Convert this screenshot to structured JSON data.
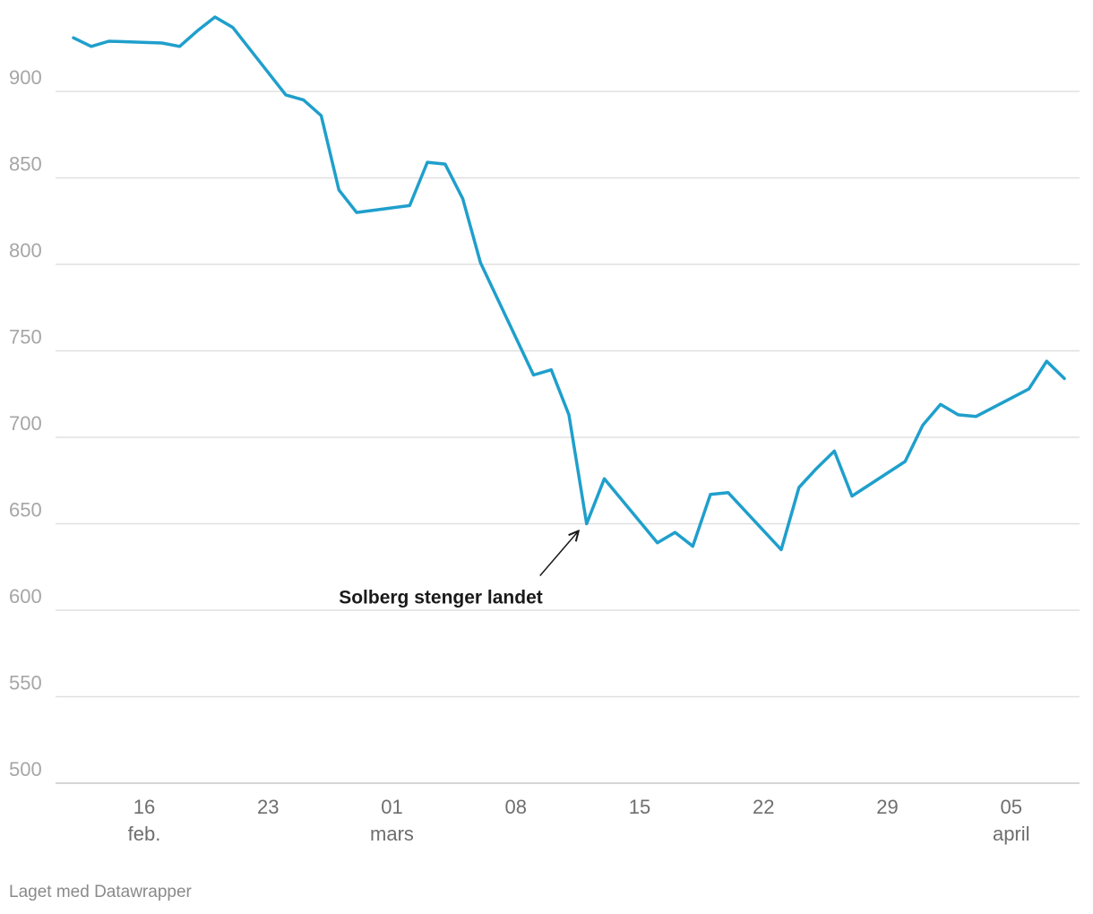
{
  "chart_data": {
    "type": "line",
    "title": "",
    "xlabel": "",
    "ylabel": "",
    "ylim": [
      500,
      940
    ],
    "yticks": [
      500,
      550,
      600,
      650,
      700,
      750,
      800,
      850,
      900
    ],
    "grid": true,
    "x_ticks": [
      {
        "date": "2020-02-16",
        "label": "16",
        "sublabel": "feb."
      },
      {
        "date": "2020-02-23",
        "label": "23",
        "sublabel": ""
      },
      {
        "date": "2020-03-01",
        "label": "01",
        "sublabel": "mars"
      },
      {
        "date": "2020-03-08",
        "label": "08",
        "sublabel": ""
      },
      {
        "date": "2020-03-15",
        "label": "15",
        "sublabel": ""
      },
      {
        "date": "2020-03-22",
        "label": "22",
        "sublabel": ""
      },
      {
        "date": "2020-03-29",
        "label": "29",
        "sublabel": ""
      },
      {
        "date": "2020-04-05",
        "label": "05",
        "sublabel": "april"
      }
    ],
    "series": [
      {
        "color": "#1f9fcc",
        "points": [
          [
            "2020-02-12",
            931
          ],
          [
            "2020-02-13",
            926
          ],
          [
            "2020-02-14",
            929
          ],
          [
            "2020-02-17",
            928
          ],
          [
            "2020-02-18",
            926
          ],
          [
            "2020-02-19",
            935
          ],
          [
            "2020-02-20",
            943
          ],
          [
            "2020-02-21",
            937
          ],
          [
            "2020-02-24",
            898
          ],
          [
            "2020-02-25",
            895
          ],
          [
            "2020-02-26",
            886
          ],
          [
            "2020-02-27",
            843
          ],
          [
            "2020-02-28",
            830
          ],
          [
            "2020-03-02",
            834
          ],
          [
            "2020-03-03",
            859
          ],
          [
            "2020-03-04",
            858
          ],
          [
            "2020-03-05",
            838
          ],
          [
            "2020-03-06",
            801
          ],
          [
            "2020-03-09",
            736
          ],
          [
            "2020-03-10",
            739
          ],
          [
            "2020-03-11",
            713
          ],
          [
            "2020-03-12",
            650
          ],
          [
            "2020-03-13",
            676
          ],
          [
            "2020-03-16",
            639
          ],
          [
            "2020-03-17",
            645
          ],
          [
            "2020-03-18",
            637
          ],
          [
            "2020-03-19",
            667
          ],
          [
            "2020-03-20",
            668
          ],
          [
            "2020-03-23",
            635
          ],
          [
            "2020-03-24",
            671
          ],
          [
            "2020-03-25",
            682
          ],
          [
            "2020-03-26",
            692
          ],
          [
            "2020-03-27",
            666
          ],
          [
            "2020-03-30",
            686
          ],
          [
            "2020-03-31",
            707
          ],
          [
            "2020-04-01",
            719
          ],
          [
            "2020-04-02",
            713
          ],
          [
            "2020-04-03",
            712
          ],
          [
            "2020-04-06",
            728
          ],
          [
            "2020-04-07",
            744
          ],
          [
            "2020-04-08",
            734
          ]
        ]
      }
    ],
    "annotations": [
      {
        "text": "Solberg stenger landet",
        "date": "2020-03-12",
        "value": 650
      }
    ]
  },
  "footer": {
    "credit": "Laget med Datawrapper"
  }
}
